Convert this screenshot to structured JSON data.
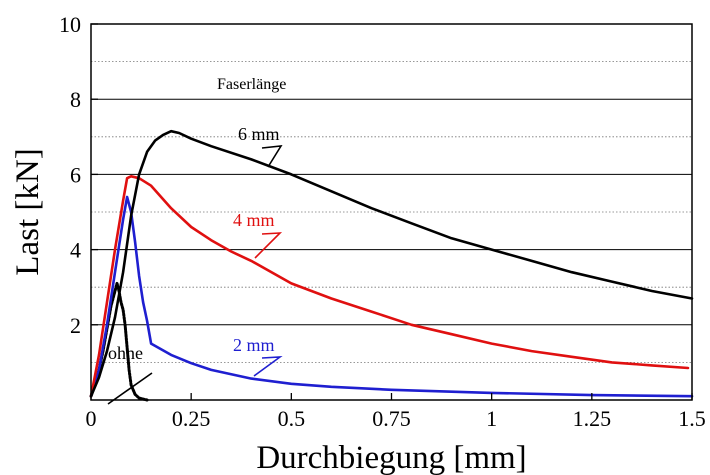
{
  "chart_data": {
    "type": "line",
    "title": "",
    "xlabel": "Durchbiegung  [mm]",
    "ylabel": "Last  [kN]",
    "xlim": [
      0,
      1.5
    ],
    "ylim": [
      0,
      10
    ],
    "x_ticks": [
      "0",
      "0.25",
      "0.5",
      "0.75",
      "1",
      "1.25",
      "1.5"
    ],
    "y_ticks": [
      "2",
      "4",
      "6",
      "8",
      "10"
    ],
    "x_tick_values": [
      0,
      0.25,
      0.5,
      0.75,
      1,
      1.25,
      1.5
    ],
    "y_tick_values": [
      2,
      4,
      6,
      8,
      10
    ],
    "grid": "horizontal",
    "legend_title": "Faserlänge",
    "series": [
      {
        "name": "ohne",
        "color": "#000000",
        "style": "dotted",
        "x": [
          0,
          0.01,
          0.02,
          0.03,
          0.04,
          0.05,
          0.06,
          0.065,
          0.07,
          0.075,
          0.08,
          0.085,
          0.09,
          0.095,
          0.1,
          0.11,
          0.12,
          0.14
        ],
        "y": [
          0.1,
          0.4,
          0.8,
          1.3,
          1.9,
          2.5,
          2.9,
          3.1,
          2.9,
          2.6,
          2.4,
          2.0,
          1.4,
          0.8,
          0.4,
          0.15,
          0.05,
          0.0
        ]
      },
      {
        "name": "2 mm",
        "color": "#1f1fd0",
        "style": "solid",
        "x": [
          0,
          0.02,
          0.04,
          0.06,
          0.08,
          0.09,
          0.1,
          0.11,
          0.12,
          0.13,
          0.14,
          0.15,
          0.2,
          0.25,
          0.3,
          0.4,
          0.5,
          0.6,
          0.75,
          0.9,
          1.0,
          1.25,
          1.5
        ],
        "y": [
          0.1,
          0.8,
          2.0,
          3.4,
          4.8,
          5.4,
          5.0,
          4.2,
          3.3,
          2.6,
          2.1,
          1.5,
          1.2,
          0.98,
          0.8,
          0.57,
          0.43,
          0.35,
          0.27,
          0.22,
          0.19,
          0.13,
          0.1
        ]
      },
      {
        "name": "4 mm",
        "color": "#e01010",
        "style": "solid",
        "x": [
          0,
          0.02,
          0.04,
          0.06,
          0.08,
          0.09,
          0.1,
          0.12,
          0.15,
          0.2,
          0.25,
          0.3,
          0.35,
          0.4,
          0.5,
          0.6,
          0.7,
          0.8,
          0.9,
          1.0,
          1.1,
          1.2,
          1.3,
          1.4,
          1.49
        ],
        "y": [
          0.1,
          1.2,
          2.6,
          4.0,
          5.3,
          5.9,
          5.95,
          5.9,
          5.7,
          5.1,
          4.6,
          4.25,
          3.95,
          3.7,
          3.1,
          2.7,
          2.35,
          2.0,
          1.75,
          1.5,
          1.3,
          1.15,
          1.0,
          0.92,
          0.85
        ]
      },
      {
        "name": "6 mm",
        "color": "#000000",
        "style": "solid",
        "x": [
          0,
          0.02,
          0.04,
          0.06,
          0.08,
          0.1,
          0.12,
          0.14,
          0.16,
          0.18,
          0.2,
          0.22,
          0.25,
          0.3,
          0.4,
          0.5,
          0.6,
          0.7,
          0.8,
          0.9,
          1.0,
          1.1,
          1.2,
          1.3,
          1.4,
          1.5
        ],
        "y": [
          0.1,
          0.6,
          1.3,
          2.2,
          3.4,
          4.9,
          6.0,
          6.6,
          6.9,
          7.05,
          7.15,
          7.1,
          6.95,
          6.75,
          6.4,
          6.0,
          5.55,
          5.1,
          4.7,
          4.3,
          4.0,
          3.7,
          3.4,
          3.15,
          2.9,
          2.7
        ]
      }
    ]
  },
  "labels": {
    "ohne": "ohne",
    "mm2": "2 mm",
    "mm4": "4 mm",
    "mm6": "6 mm",
    "faserlaenge": "Faserlänge"
  }
}
